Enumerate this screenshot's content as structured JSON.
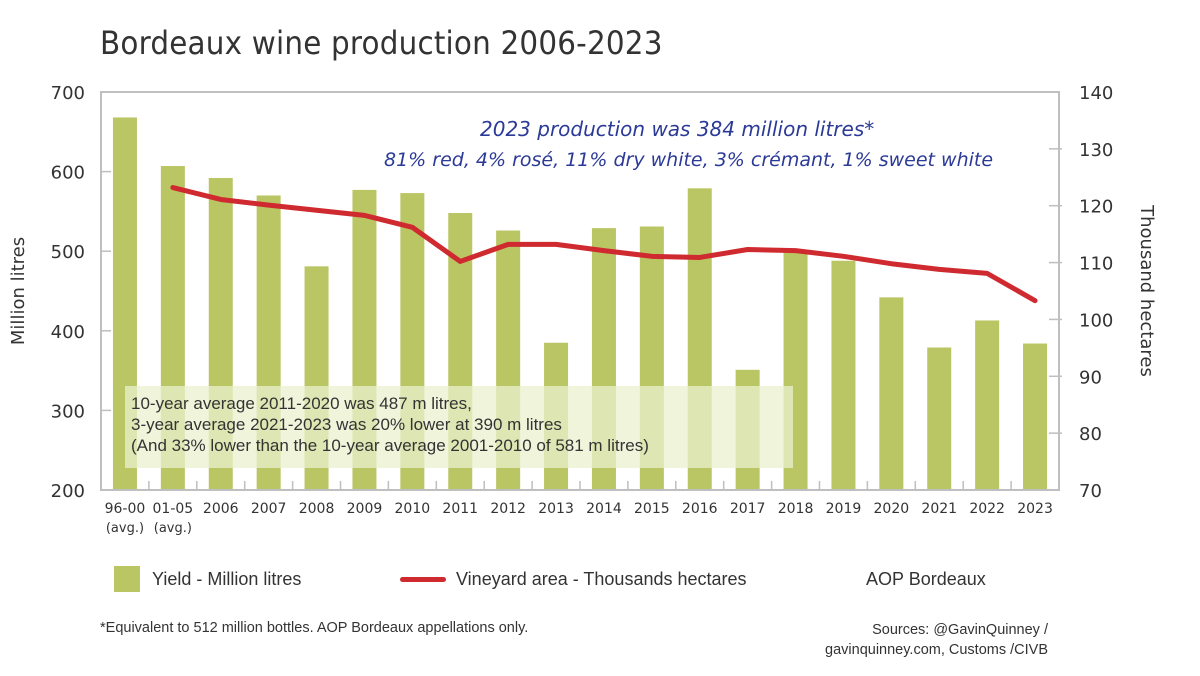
{
  "chart_data": {
    "type": "bar",
    "title": "Bordeaux wine production 2006-2023",
    "categories": [
      "96-00\n(avg.)",
      "01-05\n(avg.)",
      "2006",
      "2007",
      "2008",
      "2009",
      "2010",
      "2011",
      "2012",
      "2013",
      "2014",
      "2015",
      "2016",
      "2017",
      "2018",
      "2019",
      "2020",
      "2021",
      "2022",
      "2023"
    ],
    "category_labels": [
      [
        "96-00",
        "(avg.)"
      ],
      [
        "01-05",
        "(avg.)"
      ],
      [
        "2006"
      ],
      [
        "2007"
      ],
      [
        "2008"
      ],
      [
        "2009"
      ],
      [
        "2010"
      ],
      [
        "2011"
      ],
      [
        "2012"
      ],
      [
        "2013"
      ],
      [
        "2014"
      ],
      [
        "2015"
      ],
      [
        "2016"
      ],
      [
        "2017"
      ],
      [
        "2018"
      ],
      [
        "2019"
      ],
      [
        "2020"
      ],
      [
        "2021"
      ],
      [
        "2022"
      ],
      [
        "2023"
      ]
    ],
    "series": [
      {
        "name": "Yield - Million litres",
        "type": "bar",
        "axis": "left",
        "color": "#bac563",
        "values": [
          668,
          607,
          592,
          570,
          481,
          577,
          573,
          548,
          526,
          385,
          529,
          531,
          579,
          351,
          501,
          488,
          442,
          379,
          413,
          384
        ]
      },
      {
        "name": "Vineyard area - Thousands hectares",
        "type": "line",
        "axis": "right",
        "color": "#cf2a2f",
        "values": [
          null,
          123.2,
          121.1,
          120.1,
          119.2,
          118.3,
          116.2,
          110.2,
          113.2,
          113.2,
          112.1,
          111.1,
          110.9,
          112.3,
          112.1,
          111.1,
          109.8,
          108.8,
          108.1,
          103.3
        ]
      }
    ],
    "ylabel": "Million litres",
    "ylim": [
      200,
      700
    ],
    "yticks": [
      200,
      300,
      400,
      500,
      600,
      700
    ],
    "y2label": "Thousand hectares",
    "y2lim": [
      70,
      140
    ],
    "y2ticks": [
      70,
      80,
      90,
      100,
      110,
      120,
      130,
      140
    ],
    "grid": false,
    "legend_position": "bottom",
    "legend": [
      "Yield - Million litres",
      "Vineyard area - Thousands hectares",
      "AOP Bordeaux"
    ],
    "annotations": {
      "headline_line1": "2023 production was 384 million litres*",
      "headline_line2": "81% red, 4% rosé, 11% dry white, 3% crémant, 1% sweet white",
      "avg_line1": "10-year average 2011-2020 was 487 m litres,",
      "avg_line2": "3-year average 2021-2023 was 20% lower at 390 m litres",
      "avg_line3": "(And 33% lower than the 10-year average 2001-2010 of 581 m litres)"
    }
  },
  "legend": {
    "yield_label": "Yield - Million litres",
    "area_label": "Vineyard area - Thousands hectares",
    "region_label": "AOP Bordeaux"
  },
  "footer": {
    "footnote": "*Equivalent to 512 million bottles. AOP Bordeaux appellations only.",
    "sources_line1": "Sources: @GavinQuinney /",
    "sources_line2": "gavinquinney.com, Customs /CIVB"
  },
  "colors": {
    "bar": "#bac563",
    "line": "#cf2a2f",
    "annotation": "#2b3a97",
    "axis": "#bfbfbf"
  }
}
